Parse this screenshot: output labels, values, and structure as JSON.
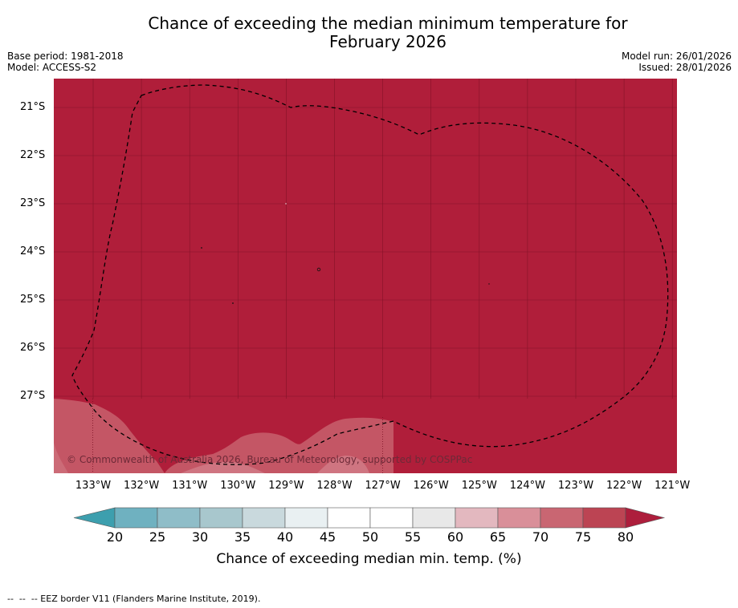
{
  "title": {
    "line1": "Chance of exceeding the median minimum temperature for",
    "line2": "February 2026"
  },
  "meta_left": {
    "base_period": "Base period: 1981-2018",
    "model": "Model: ACCESS-S2"
  },
  "meta_right": {
    "model_run": "Model run: 26/01/2026",
    "issued": "Issued: 28/01/2026"
  },
  "map": {
    "latitude_labels": [
      "21°S",
      "22°S",
      "23°S",
      "24°S",
      "25°S",
      "26°S",
      "27°S"
    ],
    "longitude_labels": [
      "133°W",
      "132°W",
      "131°W",
      "130°W",
      "129°W",
      "128°W",
      "127°W",
      "126°W",
      "125°W",
      "124°W",
      "123°W",
      "122°W",
      "121°W"
    ],
    "copyright": "© Commonwealth of Australia 2026, Bureau of Meteorology, supported by COSPPac",
    "background_color": "#b01e3a"
  },
  "colorbar": {
    "tick_labels": [
      "20",
      "25",
      "30",
      "35",
      "40",
      "45",
      "50",
      "55",
      "60",
      "65",
      "70",
      "75",
      "80"
    ],
    "colors": [
      "#3d9fae",
      "#6fb1c0",
      "#8fbdc8",
      "#a8c7cd",
      "#c9d9dd",
      "#e9f0f2",
      "#ffffff",
      "#ffffff",
      "#e8e8e8",
      "#e3b8bf",
      "#d98f99",
      "#c96672",
      "#bc4453",
      "#ad1e3c"
    ],
    "title": "Chance of exceeding median min. temp. (%)"
  },
  "footer": {
    "legend_text": "--  --  -- EEZ border V11 (Flanders Marine Institute, 2019)."
  }
}
